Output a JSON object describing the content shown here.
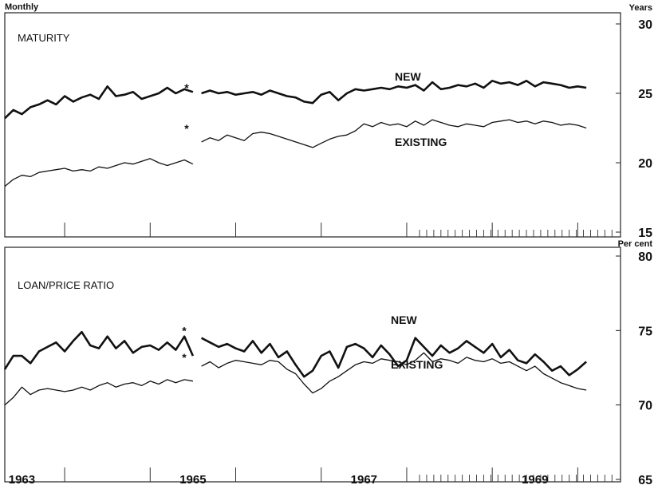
{
  "header": {
    "left_label": "Monthly"
  },
  "chart_data": [
    {
      "type": "line",
      "title": "MATURITY",
      "unit": "Years",
      "ylim": [
        15,
        30
      ],
      "yticks": [
        30,
        25,
        20,
        15
      ],
      "xlim": [
        1962.8,
        1970.0
      ],
      "xticks": [
        1963,
        1965,
        1967,
        1969
      ],
      "break_marks": [
        "*",
        "*"
      ],
      "series": [
        {
          "name": "NEW",
          "label_position": "above",
          "width": 2.6,
          "x": [
            1962.8,
            1962.9,
            1963.0,
            1963.1,
            1963.2,
            1963.3,
            1963.4,
            1963.5,
            1963.6,
            1963.7,
            1963.8,
            1963.9,
            1964.0,
            1964.1,
            1964.2,
            1964.3,
            1964.4,
            1964.5,
            1964.6,
            1964.7,
            1964.8,
            1964.9,
            1965.0,
            1965.1,
            1965.2,
            1965.3,
            1965.4,
            1965.5,
            1965.6,
            1965.7,
            1965.8,
            1965.9,
            1966.0,
            1966.1,
            1966.2,
            1966.3,
            1966.4,
            1966.5,
            1966.6,
            1966.7,
            1966.8,
            1966.9,
            1967.0,
            1967.1,
            1967.2,
            1967.3,
            1967.4,
            1967.5,
            1967.6,
            1967.7,
            1967.8,
            1967.9,
            1968.0,
            1968.1,
            1968.2,
            1968.3,
            1968.4,
            1968.5,
            1968.6,
            1968.7,
            1968.8,
            1968.9,
            1969.0,
            1969.1,
            1969.2,
            1969.3,
            1969.4,
            1969.5,
            1969.6
          ],
          "values": [
            23.2,
            23.8,
            23.5,
            24.0,
            24.2,
            24.5,
            24.2,
            24.8,
            24.4,
            24.7,
            24.9,
            24.6,
            25.5,
            24.8,
            24.9,
            25.1,
            24.6,
            24.8,
            25.0,
            25.4,
            25.0,
            25.3,
            25.1,
            25.0,
            25.2,
            25.0,
            25.1,
            24.9,
            25.0,
            25.1,
            24.9,
            25.2,
            25.0,
            24.8,
            24.7,
            24.4,
            24.3,
            24.9,
            25.1,
            24.5,
            25.0,
            25.3,
            25.2,
            25.3,
            25.4,
            25.3,
            25.5,
            25.4,
            25.6,
            25.2,
            25.8,
            25.3,
            25.4,
            25.6,
            25.5,
            25.7,
            25.4,
            25.9,
            25.7,
            25.8,
            25.6,
            25.9,
            25.5,
            25.8,
            25.7,
            25.6,
            25.4,
            25.5,
            25.4
          ]
        },
        {
          "name": "EXISTING",
          "label_position": "below",
          "width": 1.3,
          "x": [
            1962.8,
            1962.9,
            1963.0,
            1963.1,
            1963.2,
            1963.3,
            1963.4,
            1963.5,
            1963.6,
            1963.7,
            1963.8,
            1963.9,
            1964.0,
            1964.1,
            1964.2,
            1964.3,
            1964.4,
            1964.5,
            1964.6,
            1964.7,
            1964.8,
            1964.9,
            1965.0,
            1965.1,
            1965.2,
            1965.3,
            1965.4,
            1965.5,
            1965.6,
            1965.7,
            1965.8,
            1965.9,
            1966.0,
            1966.1,
            1966.2,
            1966.3,
            1966.4,
            1966.5,
            1966.6,
            1966.7,
            1966.8,
            1966.9,
            1967.0,
            1967.1,
            1967.2,
            1967.3,
            1967.4,
            1967.5,
            1967.6,
            1967.7,
            1967.8,
            1967.9,
            1968.0,
            1968.1,
            1968.2,
            1968.3,
            1968.4,
            1968.5,
            1968.6,
            1968.7,
            1968.8,
            1968.9,
            1969.0,
            1969.1,
            1969.2,
            1969.3,
            1969.4,
            1969.5,
            1969.6
          ],
          "values": [
            18.3,
            18.8,
            19.1,
            19.0,
            19.3,
            19.4,
            19.5,
            19.6,
            19.4,
            19.5,
            19.4,
            19.7,
            19.6,
            19.8,
            20.0,
            19.9,
            20.1,
            20.3,
            20.0,
            19.8,
            20.0,
            20.2,
            19.9,
            21.5,
            21.8,
            21.6,
            22.0,
            21.8,
            21.6,
            22.1,
            22.2,
            22.1,
            21.9,
            21.7,
            21.5,
            21.3,
            21.1,
            21.4,
            21.7,
            21.9,
            22.0,
            22.3,
            22.8,
            22.6,
            22.9,
            22.7,
            22.8,
            22.6,
            23.0,
            22.7,
            23.1,
            22.9,
            22.7,
            22.6,
            22.8,
            22.7,
            22.6,
            22.9,
            23.0,
            23.1,
            22.9,
            23.0,
            22.8,
            23.0,
            22.9,
            22.7,
            22.8,
            22.7,
            22.5
          ]
        }
      ]
    },
    {
      "type": "line",
      "title": "LOAN/PRICE RATIO",
      "unit": "Per cent",
      "ylim": [
        65,
        80
      ],
      "yticks": [
        80,
        75,
        70,
        65
      ],
      "xlim": [
        1962.8,
        1970.0
      ],
      "xticks": [
        1963,
        1965,
        1967,
        1969
      ],
      "break_marks": [
        "*",
        "*"
      ],
      "series": [
        {
          "name": "NEW",
          "label_position": "above",
          "width": 2.6,
          "x": [
            1962.8,
            1962.9,
            1963.0,
            1963.1,
            1963.2,
            1963.3,
            1963.4,
            1963.5,
            1963.6,
            1963.7,
            1963.8,
            1963.9,
            1964.0,
            1964.1,
            1964.2,
            1964.3,
            1964.4,
            1964.5,
            1964.6,
            1964.7,
            1964.8,
            1964.9,
            1965.0,
            1965.1,
            1965.2,
            1965.3,
            1965.4,
            1965.5,
            1965.6,
            1965.7,
            1965.8,
            1965.9,
            1966.0,
            1966.1,
            1966.2,
            1966.3,
            1966.4,
            1966.5,
            1966.6,
            1966.7,
            1966.8,
            1966.9,
            1967.0,
            1967.1,
            1967.2,
            1967.3,
            1967.4,
            1967.5,
            1967.6,
            1967.7,
            1967.8,
            1967.9,
            1968.0,
            1968.1,
            1968.2,
            1968.3,
            1968.4,
            1968.5,
            1968.6,
            1968.7,
            1968.8,
            1968.9,
            1969.0,
            1969.1,
            1969.2,
            1969.3,
            1969.4,
            1969.5,
            1969.6
          ],
          "values": [
            72.4,
            73.3,
            73.3,
            72.8,
            73.6,
            73.9,
            74.2,
            73.6,
            74.3,
            74.9,
            74.0,
            73.8,
            74.6,
            73.8,
            74.3,
            73.5,
            73.9,
            74.0,
            73.7,
            74.2,
            73.7,
            74.6,
            73.3,
            74.5,
            74.2,
            73.9,
            74.1,
            73.8,
            73.6,
            74.3,
            73.5,
            74.1,
            73.2,
            73.6,
            72.7,
            71.9,
            72.3,
            73.3,
            73.6,
            72.5,
            73.9,
            74.1,
            73.8,
            73.2,
            74.0,
            73.4,
            72.6,
            73.0,
            74.5,
            73.9,
            73.3,
            74.0,
            73.5,
            73.8,
            74.3,
            73.9,
            73.5,
            74.1,
            73.2,
            73.7,
            73.0,
            72.8,
            73.4,
            72.9,
            72.3,
            72.6,
            72.0,
            72.4,
            72.9
          ]
        },
        {
          "name": "EXISTING",
          "label_position": "below",
          "width": 1.3,
          "x": [
            1962.8,
            1962.9,
            1963.0,
            1963.1,
            1963.2,
            1963.3,
            1963.4,
            1963.5,
            1963.6,
            1963.7,
            1963.8,
            1963.9,
            1964.0,
            1964.1,
            1964.2,
            1964.3,
            1964.4,
            1964.5,
            1964.6,
            1964.7,
            1964.8,
            1964.9,
            1965.0,
            1965.1,
            1965.2,
            1965.3,
            1965.4,
            1965.5,
            1965.6,
            1965.7,
            1965.8,
            1965.9,
            1966.0,
            1966.1,
            1966.2,
            1966.3,
            1966.4,
            1966.5,
            1966.6,
            1966.7,
            1966.8,
            1966.9,
            1967.0,
            1967.1,
            1967.2,
            1967.3,
            1967.4,
            1967.5,
            1967.6,
            1967.7,
            1967.8,
            1967.9,
            1968.0,
            1968.1,
            1968.2,
            1968.3,
            1968.4,
            1968.5,
            1968.6,
            1968.7,
            1968.8,
            1968.9,
            1969.0,
            1969.1,
            1969.2,
            1969.3,
            1969.4,
            1969.5,
            1969.6
          ],
          "values": [
            70.0,
            70.5,
            71.2,
            70.7,
            71.0,
            71.1,
            71.0,
            70.9,
            71.0,
            71.2,
            71.0,
            71.3,
            71.5,
            71.2,
            71.4,
            71.5,
            71.3,
            71.6,
            71.4,
            71.7,
            71.5,
            71.7,
            71.6,
            72.6,
            72.9,
            72.5,
            72.8,
            73.0,
            72.9,
            72.8,
            72.7,
            73.0,
            72.9,
            72.4,
            72.1,
            71.4,
            70.8,
            71.1,
            71.6,
            71.9,
            72.3,
            72.7,
            72.9,
            72.8,
            73.1,
            73.0,
            72.9,
            72.7,
            73.0,
            73.5,
            72.9,
            73.1,
            73.0,
            72.8,
            73.2,
            73.0,
            72.9,
            73.1,
            72.8,
            72.9,
            72.6,
            72.3,
            72.6,
            72.1,
            71.8,
            71.5,
            71.3,
            71.1,
            71.0
          ]
        }
      ]
    }
  ]
}
